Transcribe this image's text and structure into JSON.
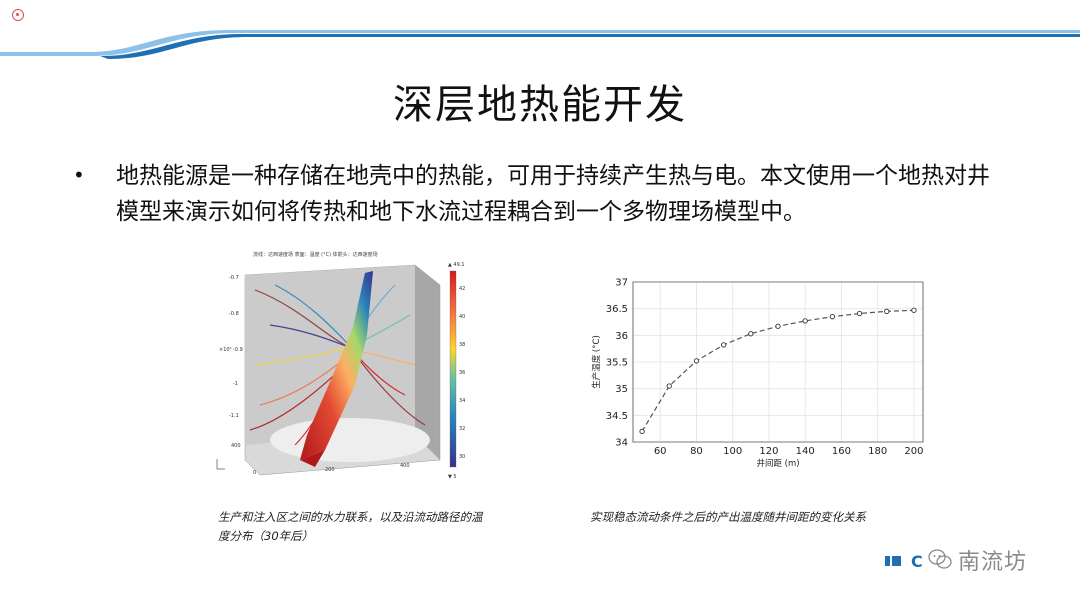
{
  "slide": {
    "title": "深层地热能开发",
    "bullet": "•",
    "body": "地热能源是一种存储在地壳中的热能，可用于持续产生热与电。本文使用一个地热对井模型来演示如何将传热和地下水流过程耦合到一个多物理场模型中。"
  },
  "figure_left": {
    "plot_header": "流线：达西速度场 表面：温度 (°C) 体箭头：达西速度场",
    "colorbar_max": "▲ 49.1",
    "colorbar_min": "▼ 5",
    "colorbar_ticks": [
      "42",
      "40",
      "38",
      "36",
      "34",
      "32",
      "30"
    ],
    "y_ticks": [
      "-0.7",
      "-0.8",
      "-0.9",
      "-1",
      "-1.1"
    ],
    "y_exponent": "×10³",
    "x_ticks": [
      "0",
      "200",
      "400"
    ],
    "z_tick": "400",
    "colors": {
      "hot": "#d7191c",
      "mid": "#ffd22e",
      "cool": "#2b83ba",
      "cold": "#3a2f8f"
    }
  },
  "figure_right": {
    "chart_data": {
      "type": "line",
      "x": [
        50,
        65,
        80,
        95,
        110,
        125,
        140,
        155,
        170,
        185,
        200
      ],
      "y": [
        34.2,
        35.05,
        35.52,
        35.82,
        36.03,
        36.17,
        36.27,
        36.35,
        36.41,
        36.45,
        36.47
      ],
      "xlabel": "井间距 (m)",
      "ylabel": "生产温度 (°C)",
      "xlim": [
        45,
        205
      ],
      "ylim": [
        34,
        37
      ],
      "x_ticks": [
        60,
        80,
        100,
        120,
        140,
        160,
        180,
        200
      ],
      "y_ticks": [
        34,
        34.5,
        35,
        35.5,
        36,
        36.5,
        37
      ],
      "grid": true,
      "line_style": "dashed with circle markers",
      "color": "#555555"
    }
  },
  "captions": {
    "left": "生产和注入区之间的水力联系，以及沿流动路径的温度分布（30年后）",
    "right": "实现稳态流动条件之后的产出温度随井间距的变化关系"
  },
  "watermark": {
    "text": "南流坊",
    "logo_text": "C"
  },
  "theme": {
    "accent": "#1f6fb5",
    "accent_light": "#8fc1e8"
  }
}
